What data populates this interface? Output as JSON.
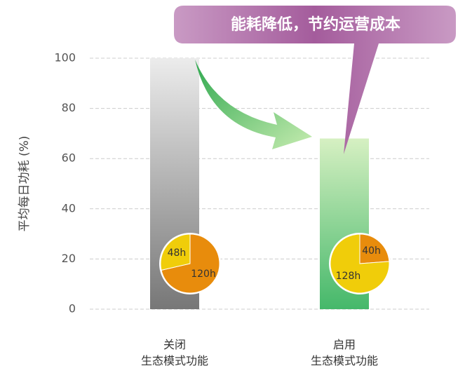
{
  "chart_data": {
    "type": "bar",
    "annotation": "能耗降低，节约运营成本",
    "y_label": "平均每日功耗 (%)",
    "categories": [
      "关闭\n生态模式功能",
      "启用\n生态模式功能"
    ],
    "values": [
      100,
      68
    ],
    "gradients": [
      [
        "#ececec",
        "#777777"
      ],
      [
        "#d6f0c2",
        "#45b86a"
      ]
    ],
    "ylim": [
      0,
      100
    ],
    "yticks": [
      0,
      20,
      40,
      60,
      80,
      100
    ],
    "grid": true,
    "pies": [
      {
        "values": [
          120,
          48
        ],
        "value_labels": [
          "120h",
          "48h"
        ],
        "colors": [
          "#e88c0c",
          "#f0cd0a"
        ]
      },
      {
        "values": [
          40,
          128
        ],
        "value_labels": [
          "40h",
          "128h"
        ],
        "colors": [
          "#e88c0c",
          "#f0cd0a"
        ]
      }
    ]
  }
}
